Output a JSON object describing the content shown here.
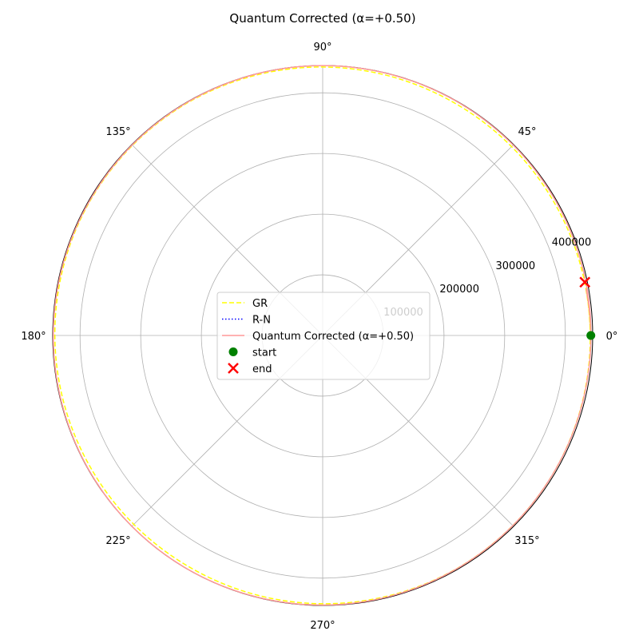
{
  "chart_data": {
    "type": "line",
    "projection": "polar",
    "title": "Quantum Corrected (α=+0.50)",
    "angle_ticks_deg": [
      0,
      45,
      90,
      135,
      180,
      225,
      270,
      315
    ],
    "angle_tick_labels": [
      "0°",
      "45°",
      "90°",
      "135°",
      "180°",
      "225°",
      "270°",
      "315°"
    ],
    "radial_ticks": [
      100000,
      200000,
      300000,
      400000
    ],
    "radial_tick_labels": [
      "100000",
      "200000",
      "300000",
      "400000"
    ],
    "radial_label_angle_deg": 22.5,
    "rlim": [
      0,
      445000
    ],
    "grid": true,
    "legend_position": "center",
    "series": [
      {
        "name": "GR",
        "color": "#ffff00",
        "linestyle": "dashed",
        "theta_deg": [
          0,
          30,
          60,
          90,
          120,
          150,
          180,
          210,
          240,
          270,
          300,
          330,
          360,
          370
        ],
        "r": [
          441000,
          440000,
          440500,
          442500,
          443500,
          443000,
          441500,
          440200,
          440400,
          442200,
          443300,
          442800,
          441000,
          440500
        ]
      },
      {
        "name": "R-N",
        "color": "#0000ff",
        "linestyle": "dotted",
        "theta_deg": [],
        "r": []
      },
      {
        "name": "Quantum Corrected (α=+0.50)",
        "color": "#ff9999",
        "linestyle": "solid",
        "theta_deg": [
          0,
          30,
          60,
          90,
          120,
          150,
          180,
          210,
          240,
          270,
          300,
          330,
          360,
          370
        ],
        "r": [
          442000,
          443500,
          444500,
          444800,
          444500,
          443800,
          444000,
          444600,
          444800,
          444300,
          443500,
          442800,
          442000,
          441000
        ]
      }
    ],
    "markers": [
      {
        "name": "start",
        "theta_deg": 0,
        "r": 442000,
        "color": "#008000",
        "symbol": "circle"
      },
      {
        "name": "end",
        "theta_deg": 11.5,
        "r": 441000,
        "color": "#ff0000",
        "symbol": "x"
      }
    ]
  }
}
